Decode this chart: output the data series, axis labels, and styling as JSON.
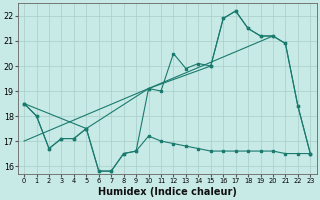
{
  "xlabel": "Humidex (Indice chaleur)",
  "bg_color": "#c8eae6",
  "grid_color": "#a8ceca",
  "line_color": "#1a7a6e",
  "xlim": [
    -0.5,
    23.5
  ],
  "ylim": [
    15.7,
    22.5
  ],
  "xticks": [
    0,
    1,
    2,
    3,
    4,
    5,
    6,
    7,
    8,
    9,
    10,
    11,
    12,
    13,
    14,
    15,
    16,
    17,
    18,
    19,
    20,
    21,
    22,
    23
  ],
  "yticks": [
    16,
    17,
    18,
    19,
    20,
    21,
    22
  ],
  "series1_x": [
    0,
    1,
    2,
    3,
    4,
    5,
    6,
    7,
    8,
    9,
    10,
    11,
    12,
    13,
    14,
    15,
    16,
    17,
    18,
    19,
    20,
    21,
    22,
    23
  ],
  "series1_y": [
    18.5,
    18.0,
    16.7,
    17.1,
    17.1,
    17.5,
    15.8,
    15.8,
    16.5,
    16.6,
    19.1,
    19.0,
    20.5,
    19.9,
    20.1,
    20.0,
    21.9,
    22.2,
    21.5,
    21.2,
    21.2,
    20.9,
    18.4,
    16.5
  ],
  "series2_x": [
    0,
    5,
    10,
    15,
    16,
    17,
    18,
    19,
    20,
    21,
    22,
    23
  ],
  "series2_y": [
    18.5,
    17.5,
    19.1,
    20.0,
    21.9,
    22.2,
    21.5,
    21.2,
    21.2,
    20.9,
    18.4,
    16.5
  ],
  "series3_x": [
    0,
    1,
    2,
    3,
    4,
    5,
    6,
    7,
    8,
    9,
    10,
    11,
    12,
    13,
    14,
    15,
    16,
    17,
    18,
    19,
    20,
    21,
    22,
    23
  ],
  "series3_y": [
    18.5,
    18.0,
    16.7,
    17.1,
    17.1,
    17.5,
    15.8,
    15.8,
    16.5,
    16.6,
    17.2,
    17.0,
    16.9,
    16.8,
    16.7,
    16.6,
    16.6,
    16.6,
    16.6,
    16.6,
    16.6,
    16.5,
    16.5,
    16.5
  ],
  "trend_x": [
    0,
    20
  ],
  "trend_y": [
    17.0,
    21.2
  ]
}
